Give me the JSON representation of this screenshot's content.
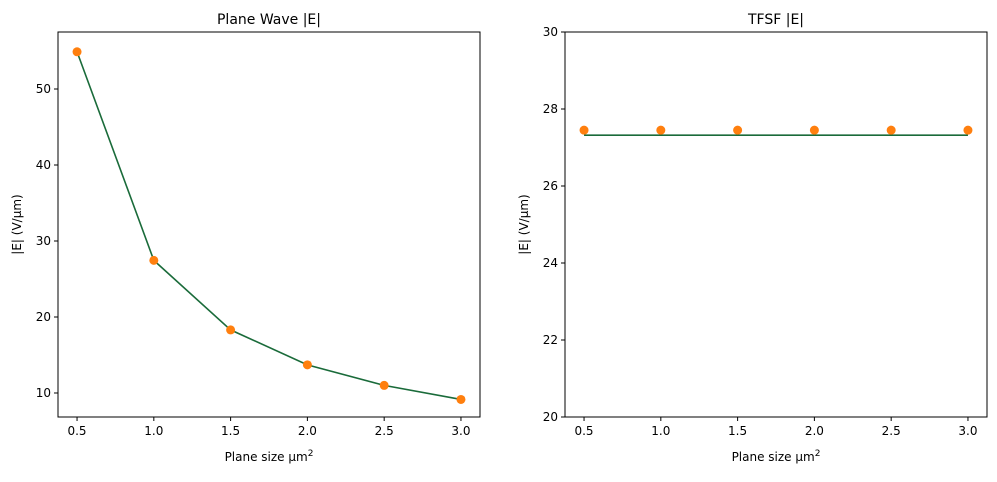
{
  "chart_data": [
    {
      "type": "line",
      "title": "Plane Wave |E|",
      "xlabel": "Plane size µm",
      "xlabel_sup": "2",
      "ylabel": "|E| (V/µm)",
      "xlim": [
        0.376,
        3.124
      ],
      "ylim": [
        6.84,
        57.5
      ],
      "xticks": [
        0.5,
        1.0,
        1.5,
        2.0,
        2.5,
        3.0
      ],
      "xtick_labels": [
        "0.5",
        "1.0",
        "1.5",
        "2.0",
        "2.5",
        "3.0"
      ],
      "yticks": [
        10,
        20,
        30,
        40,
        50
      ],
      "ytick_labels": [
        "10",
        "20",
        "30",
        "40",
        "50"
      ],
      "grid": false,
      "series": [
        {
          "style": "line",
          "color": "#1a6b3a",
          "x": [
            0.5,
            1.0,
            1.5,
            2.0,
            2.5,
            3.0
          ],
          "y": [
            54.9,
            27.45,
            18.3,
            13.7,
            11.0,
            9.15
          ]
        },
        {
          "style": "markers",
          "color": "#ff7f0e",
          "x": [
            0.5,
            1.0,
            1.5,
            2.0,
            2.5,
            3.0
          ],
          "y": [
            54.9,
            27.45,
            18.3,
            13.7,
            11.0,
            9.15
          ]
        }
      ]
    },
    {
      "type": "line",
      "title": "TFSF |E|",
      "xlabel": "Plane size µm",
      "xlabel_sup": "2",
      "ylabel": "|E| (V/µm)",
      "xlim": [
        0.376,
        3.124
      ],
      "ylim": [
        20,
        30
      ],
      "xticks": [
        0.5,
        1.0,
        1.5,
        2.0,
        2.5,
        3.0
      ],
      "xtick_labels": [
        "0.5",
        "1.0",
        "1.5",
        "2.0",
        "2.5",
        "3.0"
      ],
      "yticks": [
        20,
        22,
        24,
        26,
        28,
        30
      ],
      "ytick_labels": [
        "20",
        "22",
        "24",
        "26",
        "28",
        "30"
      ],
      "grid": false,
      "series": [
        {
          "style": "line",
          "color": "#1a6b3a",
          "x": [
            0.5,
            1.0,
            1.5,
            2.0,
            2.5,
            3.0
          ],
          "y": [
            27.32,
            27.32,
            27.32,
            27.32,
            27.32,
            27.32
          ]
        },
        {
          "style": "markers",
          "color": "#ff7f0e",
          "x": [
            0.5,
            1.0,
            1.5,
            2.0,
            2.5,
            3.0
          ],
          "y": [
            27.45,
            27.45,
            27.45,
            27.45,
            27.45,
            27.45
          ]
        }
      ]
    }
  ]
}
